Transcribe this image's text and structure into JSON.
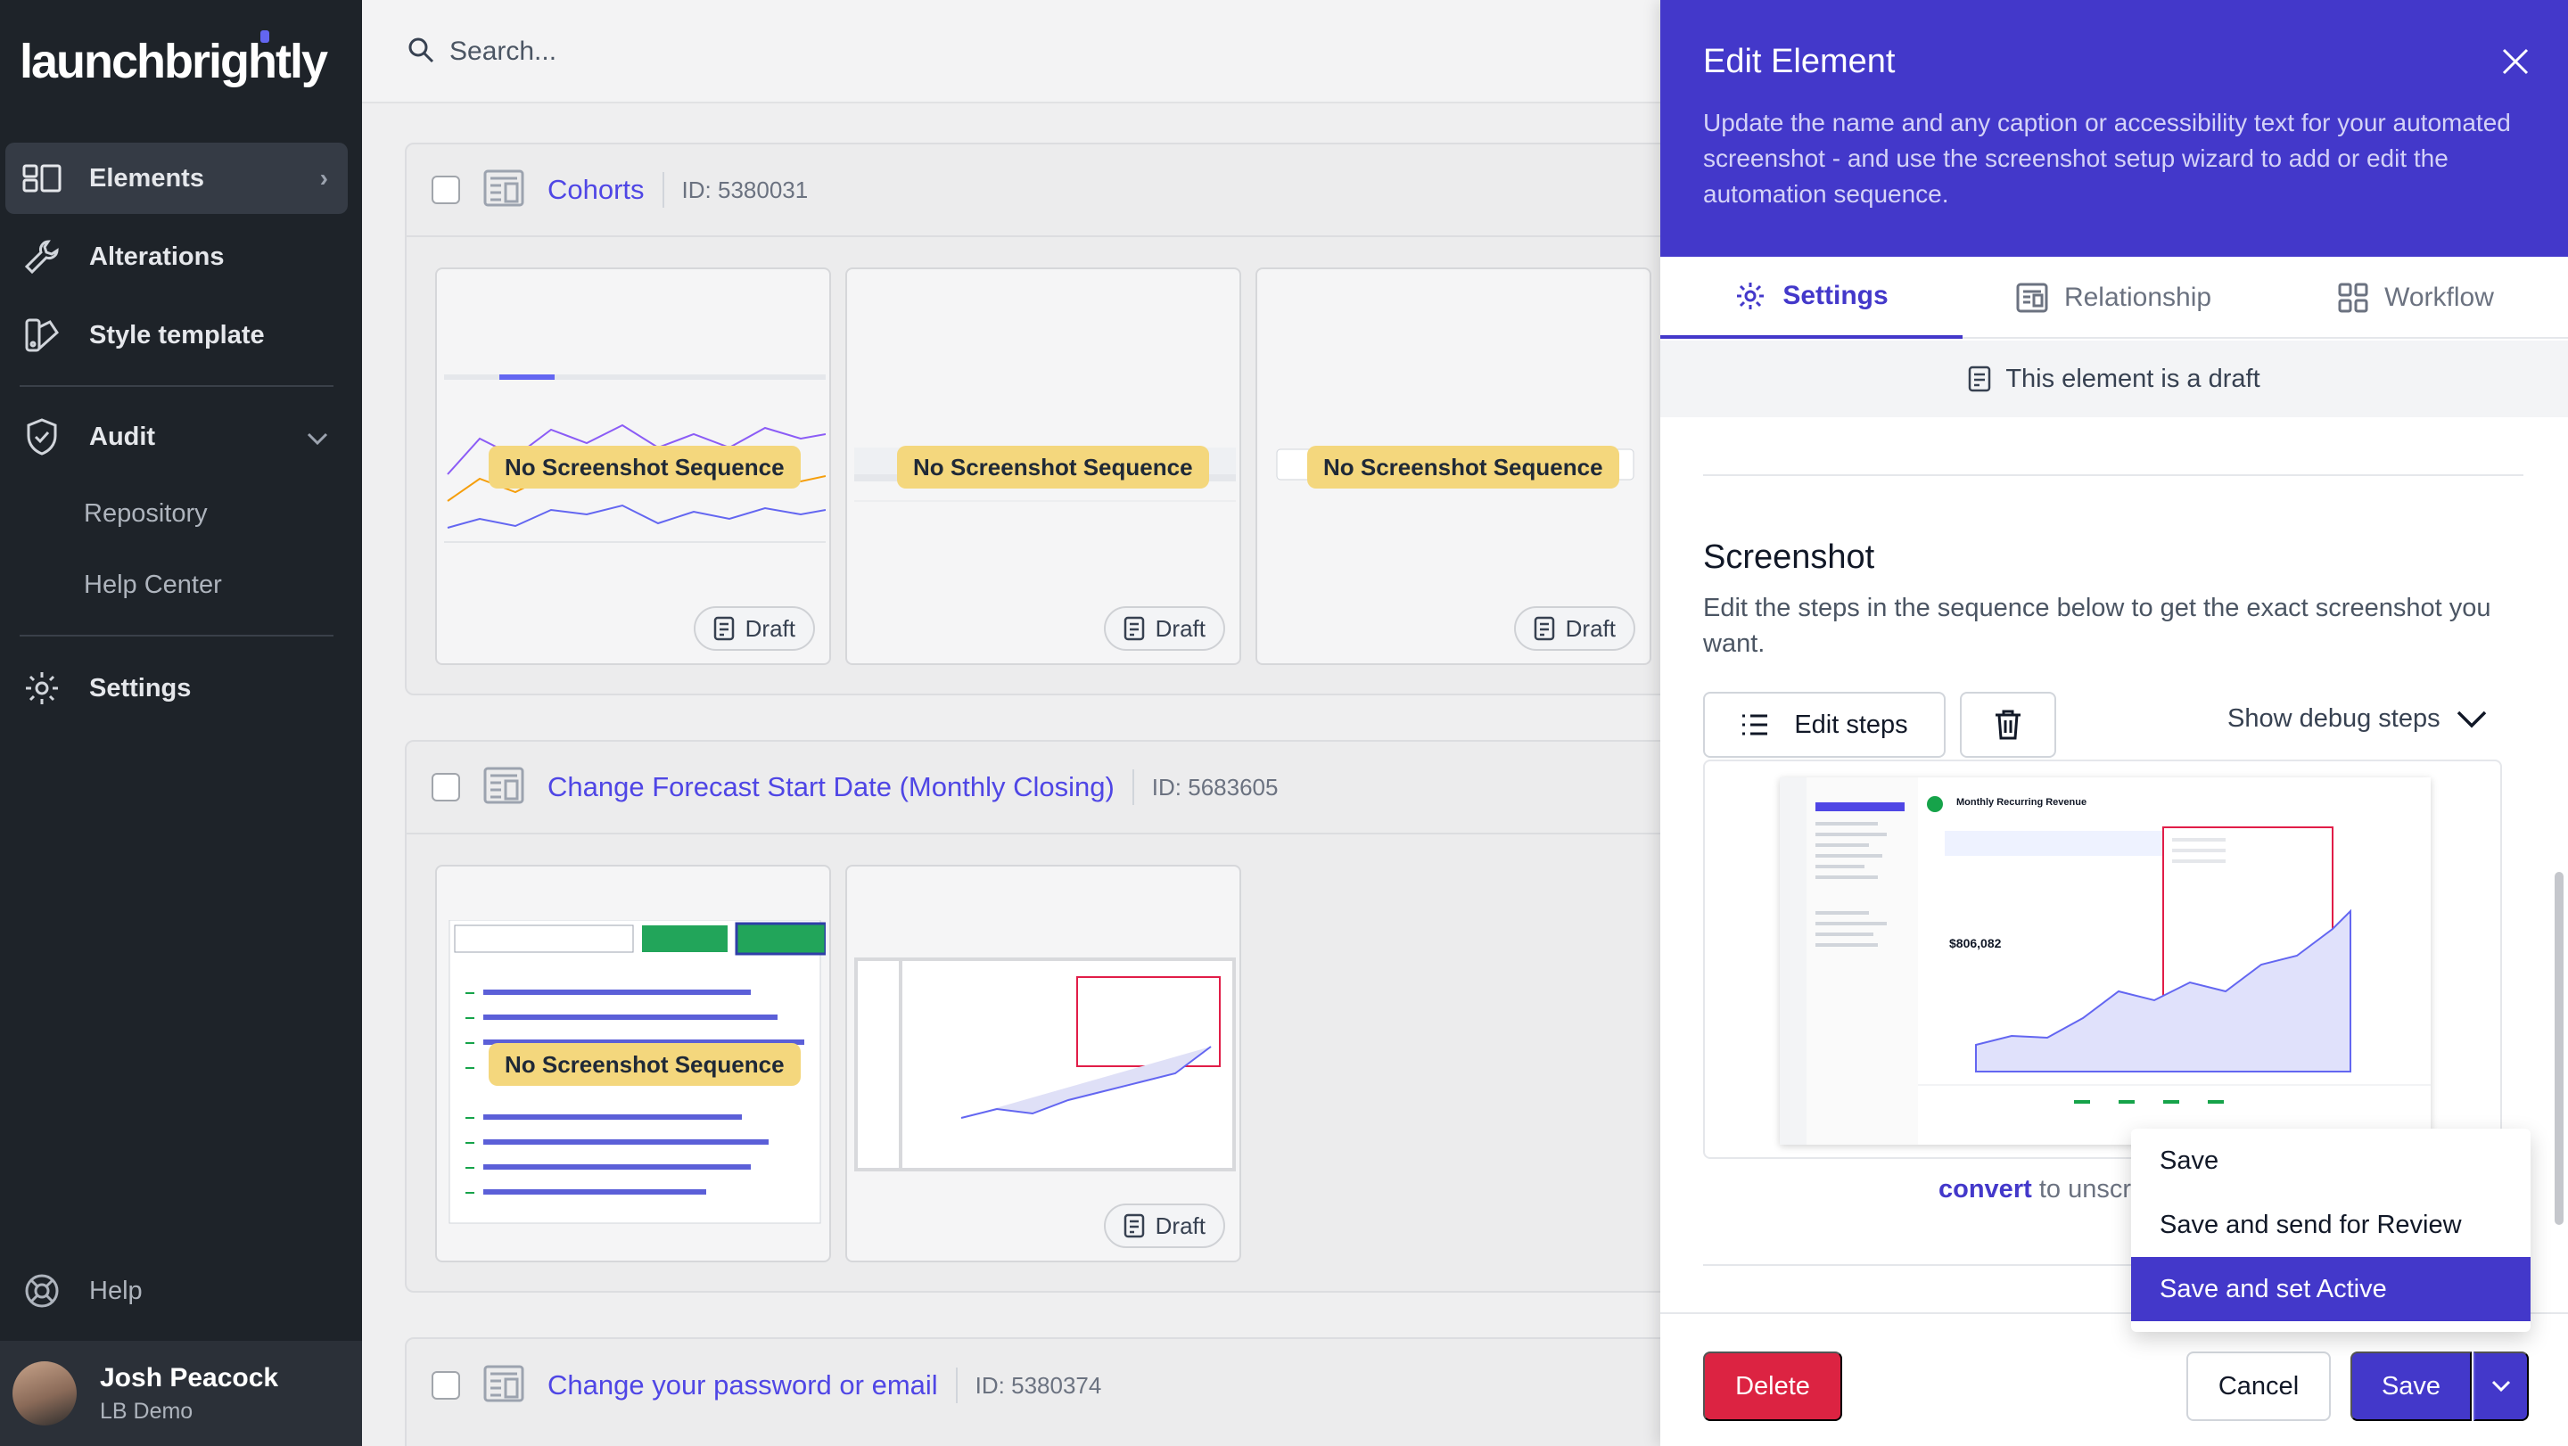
{
  "sidebar": {
    "logo": "launchbrightly",
    "items": [
      {
        "label": "Elements"
      },
      {
        "label": "Alterations"
      },
      {
        "label": "Style template"
      },
      {
        "label": "Audit"
      },
      {
        "label": "Settings"
      },
      {
        "label": "Help"
      }
    ],
    "audit_sub": [
      "Repository",
      "Help Center"
    ],
    "user": {
      "name": "Josh Peacock",
      "org": "LB Demo"
    }
  },
  "search": {
    "placeholder": "Search..."
  },
  "groups": [
    {
      "name": "Cohorts",
      "id": "ID: 5380031"
    },
    {
      "name": "Change Forecast Start Date (Monthly Closing)",
      "id": "ID: 5683605"
    },
    {
      "name": "Change your password or email",
      "id": "ID: 5380374"
    }
  ],
  "card_labels": {
    "no_sequence": "No Screenshot Sequence",
    "draft": "Draft"
  },
  "panel": {
    "title": "Edit Element",
    "description": "Update the name and any caption or accessibility text for your automated screenshot - and use the screenshot setup wizard to add or edit the automation sequence.",
    "tabs": [
      "Settings",
      "Relationship",
      "Workflow"
    ],
    "draft_notice": "This element is a draft",
    "screenshot_title": "Screenshot",
    "screenshot_desc": "Edit the steps in the sequence below to get the exact screenshot you want.",
    "edit_steps": "Edit steps",
    "show_debug": "Show debug steps",
    "convert_link": "convert",
    "convert_rest": "to unscr",
    "delete": "Delete",
    "cancel": "Cancel",
    "save": "Save"
  },
  "preview": {
    "title": "Monthly Recurring Revenue",
    "value": "$806,082"
  },
  "save_menu": {
    "options": [
      "Save",
      "Save and send for Review",
      "Save and set Active"
    ],
    "selected": "Save and set Active"
  },
  "colors": {
    "accent": "#4338ca",
    "danger": "#dc2342",
    "badge": "#f4d77d",
    "sidebar": "#1e2329"
  }
}
